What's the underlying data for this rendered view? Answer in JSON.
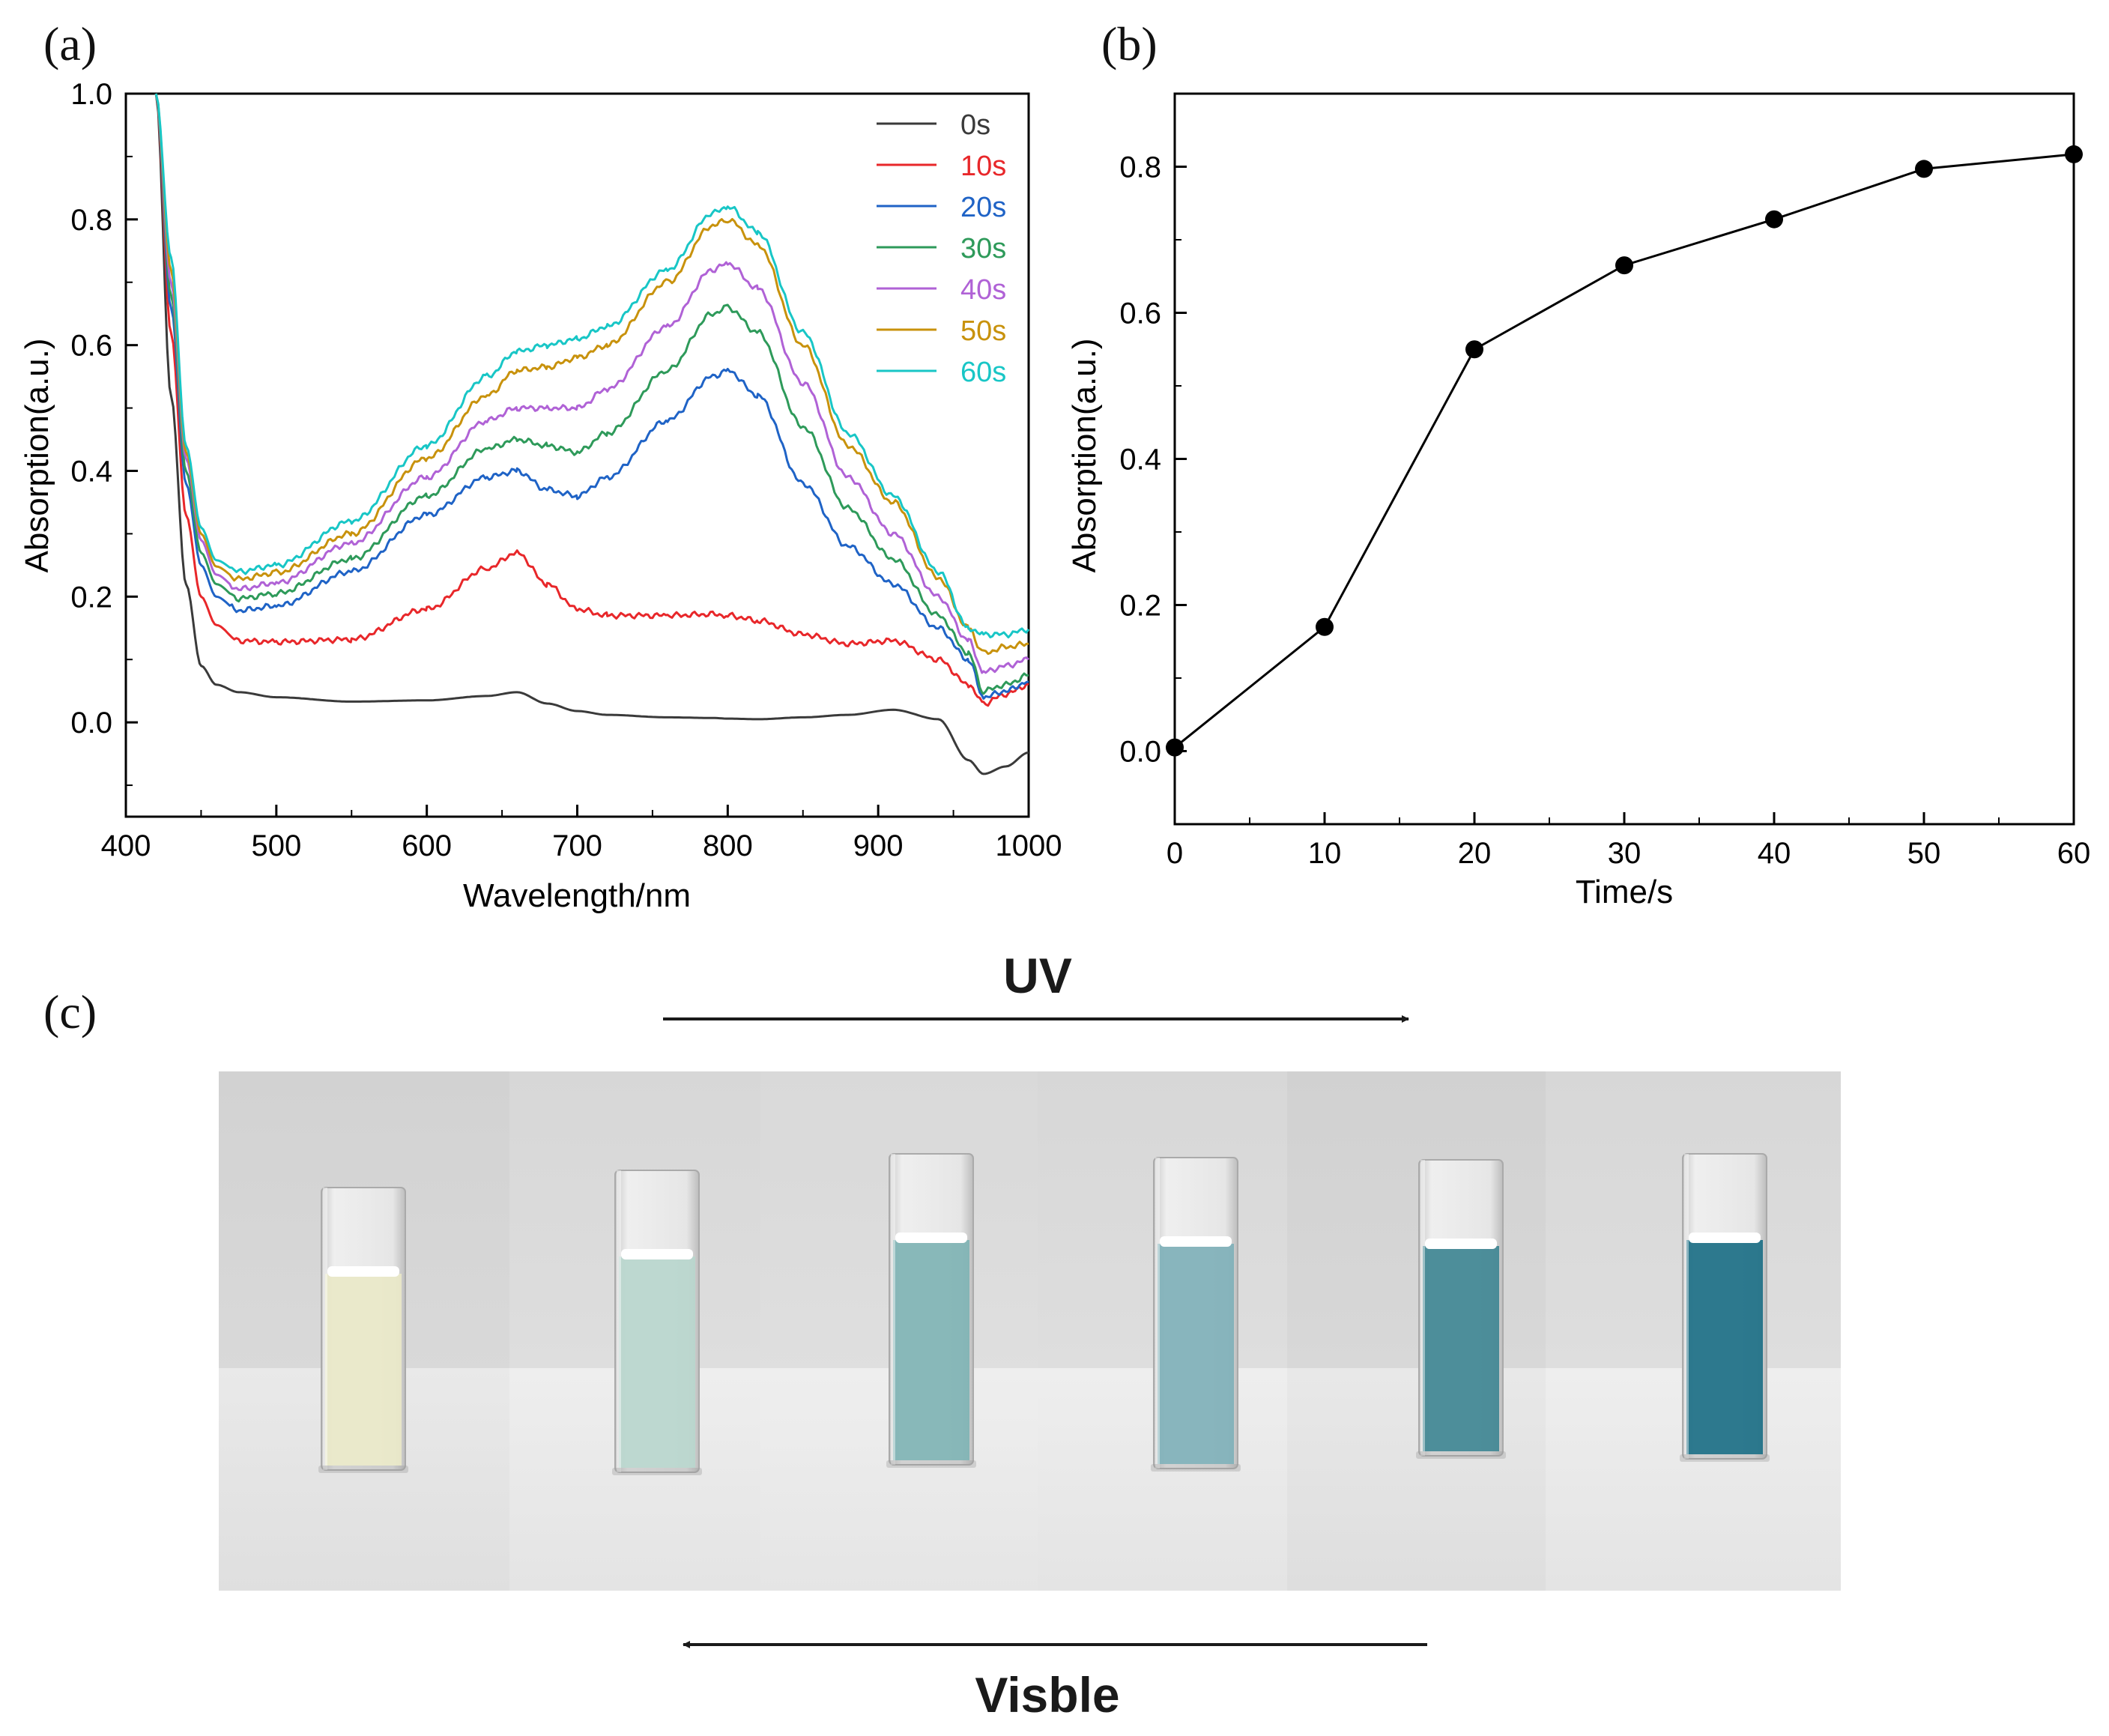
{
  "chart_data": [
    {
      "panel": "(a)",
      "type": "line",
      "xlabel": "Wavelength/nm",
      "ylabel": "Absorption(a.u.)",
      "xlim": [
        400,
        1000
      ],
      "ylim": [
        -0.15,
        1.0
      ],
      "xticks": [
        400,
        500,
        600,
        700,
        800,
        900,
        1000
      ],
      "yticks": [
        0.0,
        0.2,
        0.4,
        0.6,
        0.8,
        1.0
      ],
      "ytick_labels": [
        "0.0",
        "0.2",
        "0.4",
        "0.6",
        "0.8",
        "1.0"
      ],
      "legend_position": "top-right",
      "x": [
        420,
        430,
        440,
        450,
        460,
        475,
        500,
        550,
        600,
        640,
        660,
        680,
        700,
        720,
        760,
        790,
        800,
        820,
        850,
        880,
        910,
        940,
        960,
        970,
        985,
        1000
      ],
      "series": [
        {
          "name": "0s",
          "color": "#3a3a3a",
          "values": [
            1.0,
            0.52,
            0.22,
            0.09,
            0.06,
            0.048,
            0.04,
            0.033,
            0.035,
            0.042,
            0.048,
            0.03,
            0.018,
            0.012,
            0.008,
            0.007,
            0.006,
            0.005,
            0.008,
            0.012,
            0.02,
            0.005,
            -0.06,
            -0.082,
            -0.07,
            -0.048
          ]
        },
        {
          "name": "10s",
          "color": "#e8272a",
          "values": [
            1.0,
            0.62,
            0.33,
            0.2,
            0.155,
            0.13,
            0.128,
            0.132,
            0.18,
            0.245,
            0.27,
            0.22,
            0.18,
            0.17,
            0.17,
            0.172,
            0.17,
            0.162,
            0.14,
            0.125,
            0.13,
            0.1,
            0.06,
            0.03,
            0.045,
            0.06
          ]
        },
        {
          "name": "20s",
          "color": "#1f63c6",
          "values": [
            1.0,
            0.66,
            0.38,
            0.25,
            0.2,
            0.178,
            0.185,
            0.24,
            0.33,
            0.39,
            0.4,
            0.37,
            0.36,
            0.39,
            0.48,
            0.55,
            0.56,
            0.52,
            0.38,
            0.28,
            0.22,
            0.15,
            0.1,
            0.04,
            0.05,
            0.065
          ]
        },
        {
          "name": "30s",
          "color": "#2e9a5a",
          "values": [
            1.0,
            0.68,
            0.4,
            0.27,
            0.22,
            0.197,
            0.205,
            0.26,
            0.36,
            0.435,
            0.45,
            0.44,
            0.43,
            0.46,
            0.56,
            0.65,
            0.66,
            0.62,
            0.47,
            0.34,
            0.26,
            0.17,
            0.11,
            0.05,
            0.06,
            0.075
          ]
        },
        {
          "name": "40s",
          "color": "#b062d6",
          "values": [
            1.0,
            0.7,
            0.42,
            0.29,
            0.235,
            0.212,
            0.222,
            0.285,
            0.39,
            0.48,
            0.5,
            0.5,
            0.5,
            0.53,
            0.63,
            0.72,
            0.73,
            0.69,
            0.54,
            0.39,
            0.3,
            0.2,
            0.13,
            0.08,
            0.09,
            0.1
          ]
        },
        {
          "name": "50s",
          "color": "#c8920c",
          "values": [
            1.0,
            0.72,
            0.43,
            0.3,
            0.248,
            0.228,
            0.238,
            0.3,
            0.42,
            0.52,
            0.56,
            0.565,
            0.58,
            0.6,
            0.7,
            0.79,
            0.8,
            0.76,
            0.6,
            0.44,
            0.35,
            0.23,
            0.15,
            0.11,
            0.12,
            0.125
          ]
        },
        {
          "name": "60s",
          "color": "#18c6c6",
          "values": [
            1.0,
            0.74,
            0.44,
            0.31,
            0.258,
            0.24,
            0.25,
            0.32,
            0.44,
            0.55,
            0.59,
            0.6,
            0.61,
            0.63,
            0.72,
            0.81,
            0.82,
            0.78,
            0.62,
            0.46,
            0.36,
            0.24,
            0.15,
            0.14,
            0.14,
            0.148
          ]
        }
      ]
    },
    {
      "panel": "(b)",
      "type": "line",
      "xlabel": "Time/s",
      "ylabel": "Absorption(a.u.)",
      "xlim": [
        0,
        60
      ],
      "ylim": [
        -0.1,
        0.9
      ],
      "xticks": [
        0,
        10,
        20,
        30,
        40,
        50,
        60
      ],
      "yticks": [
        0.0,
        0.2,
        0.4,
        0.6,
        0.8
      ],
      "ytick_labels": [
        "0.0",
        "0.2",
        "0.4",
        "0.6",
        "0.8"
      ],
      "x": [
        0,
        10,
        20,
        30,
        40,
        50,
        60
      ],
      "values": [
        0.005,
        0.17,
        0.55,
        0.665,
        0.728,
        0.797,
        0.817
      ],
      "marker": "circle",
      "color": "#000000"
    }
  ],
  "panel_labels": {
    "a": "(a)",
    "b": "(b)",
    "c": "(c)"
  },
  "photo": {
    "uv_label": "UV",
    "visible_label": "Visble",
    "cuvette_colors": [
      "#e9e8c8",
      "#b9d6cd",
      "#7fb3b4",
      "#7fb0b8",
      "#3f8593",
      "#1c6f86"
    ]
  }
}
